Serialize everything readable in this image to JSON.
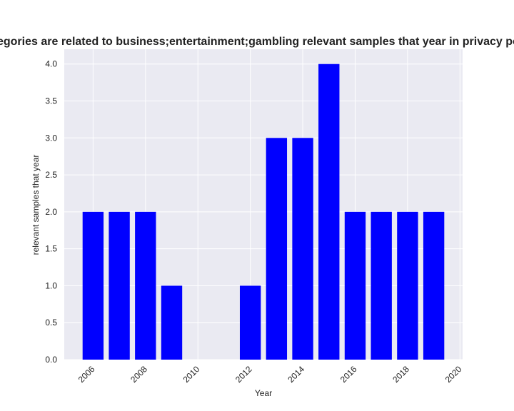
{
  "chart_data": {
    "type": "bar",
    "title": "Categories are related to business;entertainment;gambling relevant samples that year in privacy policies",
    "xlabel": "Year",
    "ylabel": "relevant samples that year",
    "x": [
      2006,
      2007,
      2008,
      2009,
      2010,
      2011,
      2012,
      2013,
      2014,
      2015,
      2016,
      2017,
      2018,
      2019
    ],
    "values": [
      2,
      2,
      2,
      1,
      0,
      0,
      1,
      3,
      3,
      4,
      2,
      2,
      2,
      2
    ],
    "xlim": [
      2004.9,
      2020.1
    ],
    "ylim": [
      0,
      4.2
    ],
    "xticks": [
      2006,
      2008,
      2010,
      2012,
      2014,
      2016,
      2018,
      2020
    ],
    "xtick_labels": [
      "2006",
      "2008",
      "2010",
      "2012",
      "2014",
      "2016",
      "2018",
      "2020"
    ],
    "yticks": [
      0,
      0.5,
      1,
      1.5,
      2,
      2.5,
      3,
      3.5,
      4
    ],
    "ytick_labels": [
      "0.0",
      "0.5",
      "1.0",
      "1.5",
      "2.0",
      "2.5",
      "3.0",
      "3.5",
      "4.0"
    ],
    "grid": true,
    "legend": "none",
    "colors": {
      "bar": "#0000ff",
      "background": "#eaeaf2",
      "grid": "#ffffff"
    }
  }
}
